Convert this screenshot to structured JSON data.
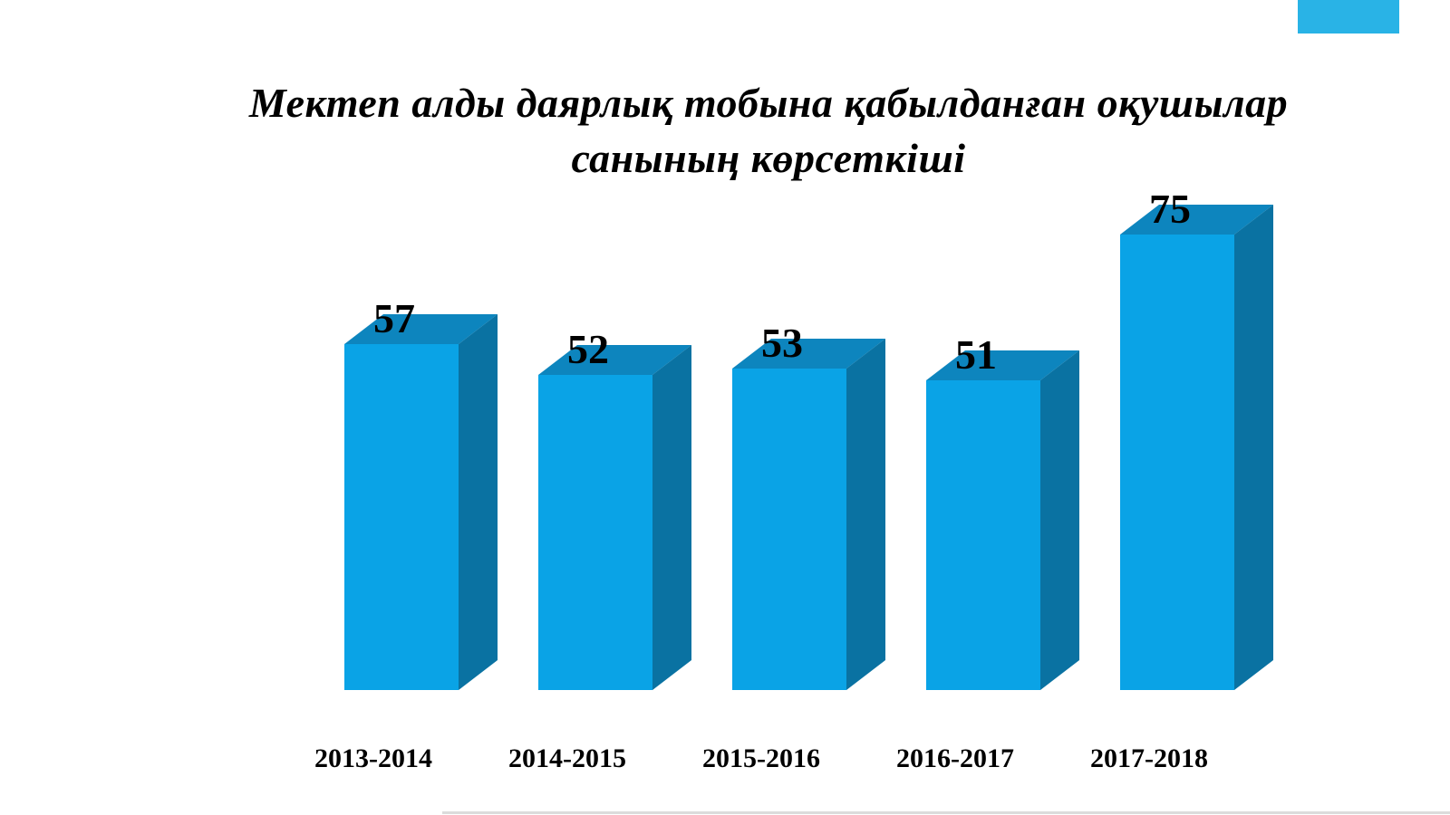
{
  "page": {
    "background": "#ffffff"
  },
  "decor": {
    "top_right_rect_color": "#29b3e6"
  },
  "chart_data": {
    "type": "bar",
    "style": "3d-box-bars",
    "title": "Мектеп алды даярлық тобына  қабылданған оқушылар санының көрсеткіші",
    "title_lines": [
      "Мектеп алды даярлық тобына  қабылданған оқушылар",
      "санының көрсеткіші"
    ],
    "categories": [
      "2013-2014",
      "2014-2015",
      "2015-2016",
      "2016-2017",
      "2017-2018"
    ],
    "values": [
      57,
      52,
      53,
      51,
      75
    ],
    "data_labels_shown": true,
    "legend": false,
    "axes_visible": false,
    "gridlines": false,
    "ylim": [
      0,
      80
    ],
    "colors": {
      "bar_front": "#0aa3e6",
      "bar_top": "#0d85be",
      "bar_side": "#0a72a2",
      "label_text": "#000000"
    }
  }
}
